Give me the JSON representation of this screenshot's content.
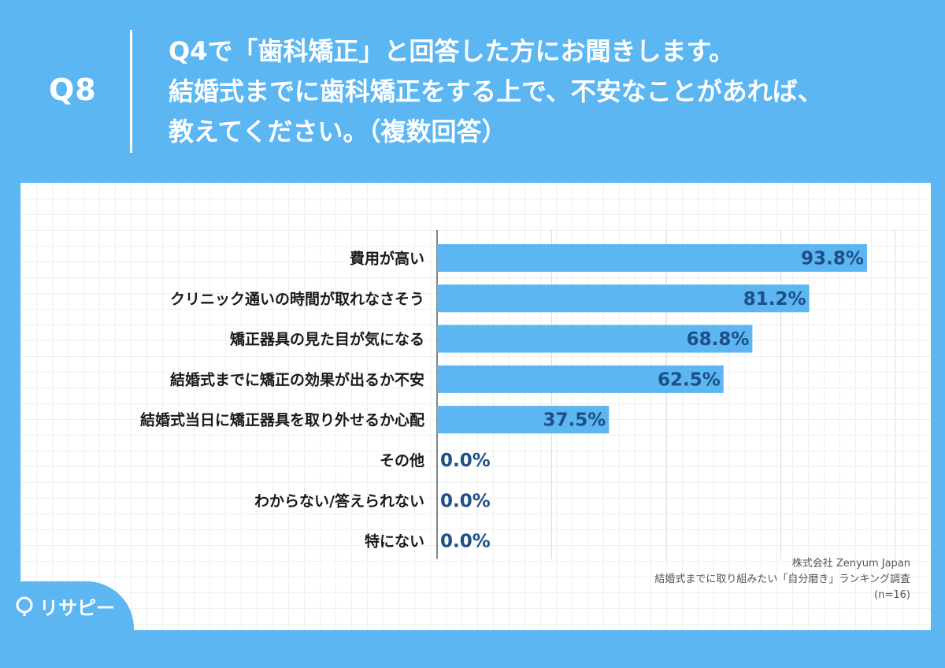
{
  "header": {
    "qnum": "Q8",
    "lines": [
      "Q4で「歯科矯正」と回答した方にお聞きします。",
      "結婚式までに歯科矯正をする上で、不安なことがあれば、",
      "教えてください。（複数回答）"
    ]
  },
  "source": {
    "company": "株式会社 Zenyum Japan",
    "survey": "結婚式までに取り組みたい「自分磨き」ランキング調査",
    "n": "(n=16)"
  },
  "logo": {
    "text": "リサピー"
  },
  "colors": {
    "background": "#5bb6f2",
    "bar": "#5bb6f2",
    "value_label": "#1e4f86",
    "category_label": "#1a1a1a"
  },
  "chart_data": {
    "type": "bar",
    "orientation": "horizontal",
    "categories": [
      "費用が高い",
      "クリニック通いの時間が取れなさそう",
      "矯正器具の見た目が気になる",
      "結婚式までに矯正の効果が出るか不安",
      "結婚式当日に矯正器具を取り外せるか心配",
      "その他",
      "わからない/答えられない",
      "特にない"
    ],
    "values": [
      93.8,
      81.2,
      68.8,
      62.5,
      37.5,
      0.0,
      0.0,
      0.0
    ],
    "value_labels": [
      "93.8%",
      "81.2%",
      "68.8%",
      "62.5%",
      "37.5%",
      "0.0%",
      "0.0%",
      "0.0%"
    ],
    "xlim": [
      0,
      100
    ],
    "grid": true
  }
}
